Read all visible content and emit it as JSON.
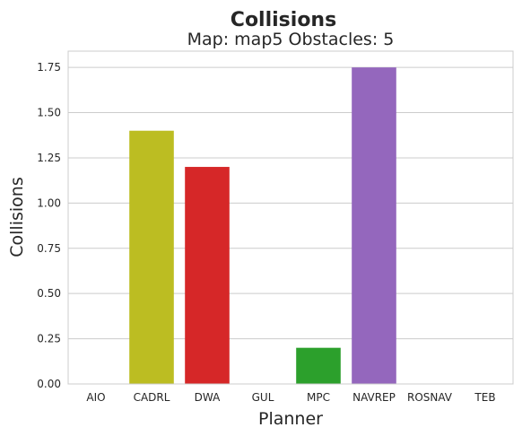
{
  "chart_data": {
    "type": "bar",
    "title": "Collisions",
    "subtitle": "Map: map5 Obstacles: 5",
    "xlabel": "Planner",
    "ylabel": "Collisions",
    "categories": [
      "AIO",
      "CADRL",
      "DWA",
      "GUL",
      "MPC",
      "NAVREP",
      "ROSNAV",
      "TEB"
    ],
    "values": [
      0,
      1.4,
      1.2,
      0,
      0.2,
      1.75,
      0,
      0
    ],
    "colors": [
      "#1f77b4",
      "#bcbd22",
      "#d62728",
      "#ff7f0e",
      "#2ca02c",
      "#9467bd",
      "#8c564b",
      "#e377c2"
    ],
    "ylim": [
      0,
      1.84
    ],
    "yticks": [
      "0.00",
      "0.25",
      "0.50",
      "0.75",
      "1.00",
      "1.25",
      "1.50",
      "1.75"
    ],
    "grid": true,
    "legend": "none"
  }
}
